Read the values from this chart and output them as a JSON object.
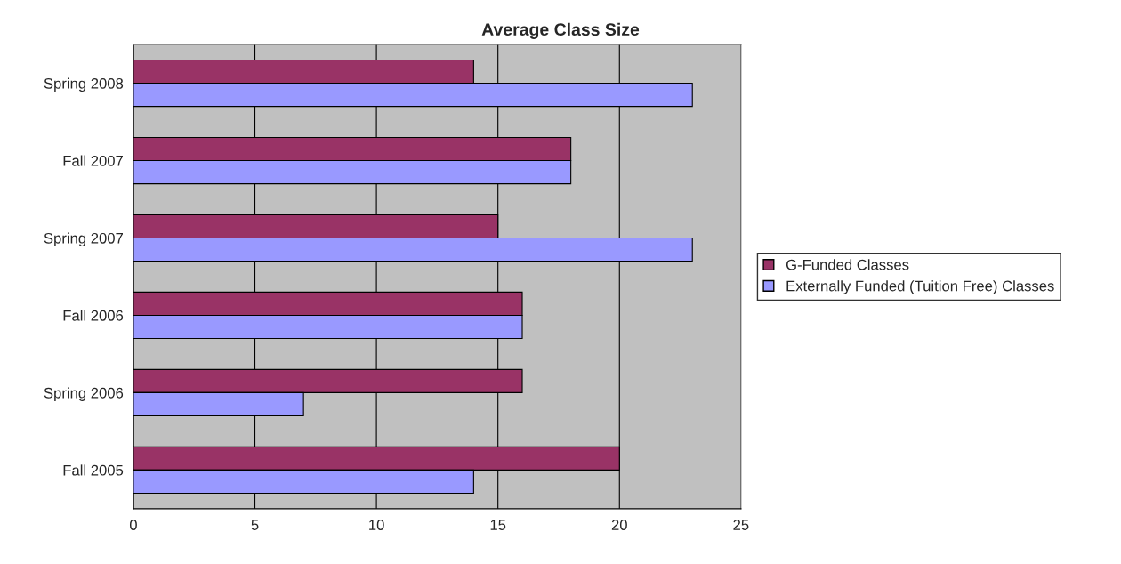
{
  "chart_data": {
    "type": "bar",
    "orientation": "horizontal",
    "title": "Average Class Size",
    "categories": [
      "Spring 2008",
      "Fall 2007",
      "Spring 2007",
      "Fall 2006",
      "Spring 2006",
      "Fall 2005"
    ],
    "series": [
      {
        "name": "G-Funded Classes",
        "color": "#993366",
        "values": [
          14,
          18,
          15,
          16,
          16,
          20
        ]
      },
      {
        "name": "Externally Funded (Tuition Free) Classes",
        "color": "#9999ff",
        "values": [
          23,
          18,
          23,
          16,
          7,
          14
        ]
      }
    ],
    "xlim": [
      0,
      25
    ],
    "xticks": [
      0,
      5,
      10,
      15,
      20,
      25
    ],
    "grid": "x",
    "legend": "right"
  }
}
